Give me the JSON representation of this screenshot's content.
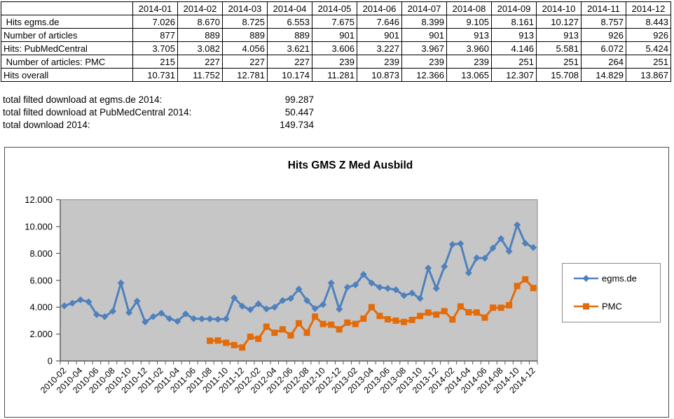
{
  "table": {
    "corner": "",
    "columns": [
      "2014-01",
      "2014-02",
      "2014-03",
      "2014-04",
      "2014-05",
      "2014-06",
      "2014-07",
      "2014-08",
      "2014-09",
      "2014-10",
      "2014-11",
      "2014-12"
    ],
    "rows": [
      {
        "label": " Hits egms.de",
        "values": [
          "7.026",
          "8.670",
          "8.725",
          "6.553",
          "7.675",
          "7.646",
          "8.399",
          "9.105",
          "8.161",
          "10.127",
          "8.757",
          "8.443"
        ]
      },
      {
        "label": "Number of articles",
        "values": [
          "877",
          "889",
          "889",
          "889",
          "901",
          "901",
          "901",
          "913",
          "913",
          "913",
          "926",
          "926"
        ]
      },
      {
        "label": "Hits: PubMedCentral",
        "values": [
          "3.705",
          "3.082",
          "4.056",
          "3.621",
          "3.606",
          "3.227",
          "3.967",
          "3.960",
          "4.146",
          "5.581",
          "6.072",
          "5.424"
        ]
      },
      {
        "label": " Number of articles: PMC",
        "values": [
          "215",
          "227",
          "227",
          "227",
          "239",
          "239",
          "239",
          "239",
          "251",
          "251",
          "264",
          "251"
        ]
      },
      {
        "label": "Hits overall",
        "values": [
          "10.731",
          "11.752",
          "12.781",
          "10.174",
          "11.281",
          "10.873",
          "12.366",
          "13.065",
          "12.307",
          "15.708",
          "14.829",
          "13.867"
        ]
      }
    ]
  },
  "summary": [
    {
      "label": "total filted download at egms.de 2014:",
      "value": "99.287"
    },
    {
      "label": "total filted download at PubMedCentral 2014:",
      "value": "50.447"
    },
    {
      "label": "total download 2014:",
      "value": "149.734"
    }
  ],
  "chart_data": {
    "type": "line",
    "title": "Hits GMS Z Med Ausbild",
    "plot_bg": "#c6c6c6",
    "axis_color": "#595959",
    "border_color": "#8c8c8c",
    "legend_position": "right",
    "ylim": [
      0,
      12000
    ],
    "ytick_step": 2000,
    "ytick_labels": [
      "0",
      "2.000",
      "4.000",
      "6.000",
      "8.000",
      "10.000",
      "12.000"
    ],
    "x": [
      "2010-02",
      "2010-03",
      "2010-04",
      "2010-05",
      "2010-06",
      "2010-07",
      "2010-08",
      "2010-09",
      "2010-10",
      "2010-11",
      "2010-12",
      "2011-01",
      "2011-02",
      "2011-03",
      "2011-04",
      "2011-05",
      "2011-06",
      "2011-07",
      "2011-08",
      "2011-09",
      "2011-10",
      "2011-11",
      "2011-12",
      "2012-01",
      "2012-02",
      "2012-03",
      "2012-04",
      "2012-05",
      "2012-06",
      "2012-07",
      "2012-08",
      "2012-09",
      "2012-10",
      "2012-11",
      "2012-12",
      "2013-01",
      "2013-02",
      "2013-03",
      "2013-04",
      "2013-05",
      "2013-06",
      "2013-07",
      "2013-08",
      "2013-09",
      "2013-10",
      "2013-11",
      "2013-12",
      "2014-01",
      "2014-02",
      "2014-03",
      "2014-04",
      "2014-05",
      "2014-06",
      "2014-07",
      "2014-08",
      "2014-09",
      "2014-10",
      "2014-11",
      "2014-12"
    ],
    "x_label_every": 2,
    "series": [
      {
        "name": "egms.de",
        "color": "#4f81bd",
        "marker": "diamond",
        "values": [
          4100,
          4300,
          4550,
          4400,
          3450,
          3300,
          3700,
          5800,
          3600,
          4450,
          2900,
          3300,
          3550,
          3150,
          2950,
          3500,
          3150,
          3130,
          3130,
          3100,
          3130,
          4700,
          4080,
          3820,
          4250,
          3870,
          4000,
          4500,
          4650,
          5350,
          4500,
          3900,
          4200,
          5800,
          3850,
          5480,
          5660,
          6440,
          5800,
          5480,
          5400,
          5300,
          4870,
          5050,
          4650,
          6910,
          5400,
          7026,
          8670,
          8725,
          6553,
          7675,
          7646,
          8399,
          9105,
          8161,
          10127,
          8757,
          8443
        ]
      },
      {
        "name": "PMC",
        "color": "#e36c0a",
        "marker": "square",
        "values": [
          null,
          null,
          null,
          null,
          null,
          null,
          null,
          null,
          null,
          null,
          null,
          null,
          null,
          null,
          null,
          null,
          null,
          null,
          1500,
          1520,
          1350,
          1180,
          1000,
          1800,
          1650,
          2550,
          2100,
          2350,
          1900,
          2800,
          2100,
          3300,
          2750,
          2700,
          2350,
          2850,
          2750,
          3150,
          4000,
          3350,
          3100,
          3000,
          2900,
          3050,
          3350,
          3600,
          3450,
          3705,
          3082,
          4056,
          3621,
          3606,
          3227,
          3967,
          3960,
          4146,
          5581,
          6072,
          5424
        ]
      }
    ]
  }
}
